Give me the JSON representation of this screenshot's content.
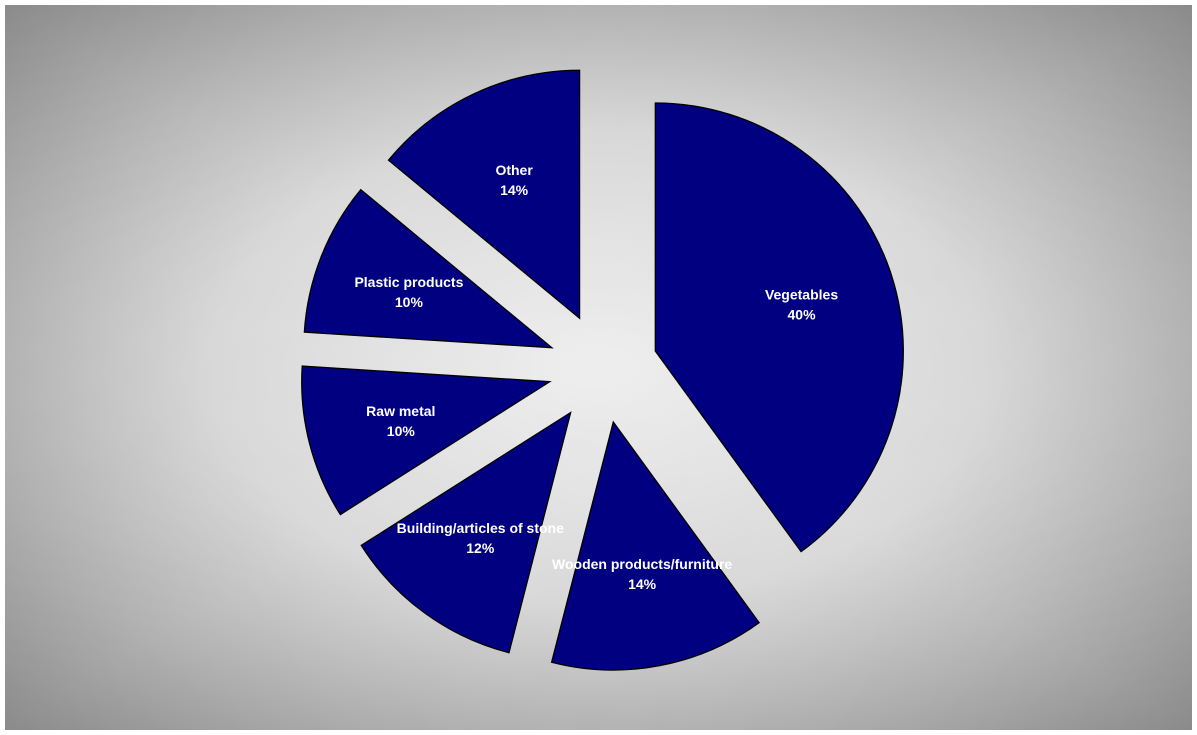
{
  "chart_data": {
    "type": "pie",
    "title": "",
    "exploded": true,
    "slice_color": "#000080",
    "label_color": "#ffffff",
    "background": "radial gray gradient",
    "slices": [
      {
        "label": "Vegetables",
        "percent_label": "40%",
        "value": 40
      },
      {
        "label": "Wooden products/furniture",
        "percent_label": "14%",
        "value": 14
      },
      {
        "label": "Building/articles of stone",
        "percent_label": "12%",
        "value": 12
      },
      {
        "label": "Raw metal",
        "percent_label": "10%",
        "value": 10
      },
      {
        "label": "Plastic products",
        "percent_label": "10%",
        "value": 10
      },
      {
        "label": "Other",
        "percent_label": "14%",
        "value": 14
      }
    ]
  }
}
